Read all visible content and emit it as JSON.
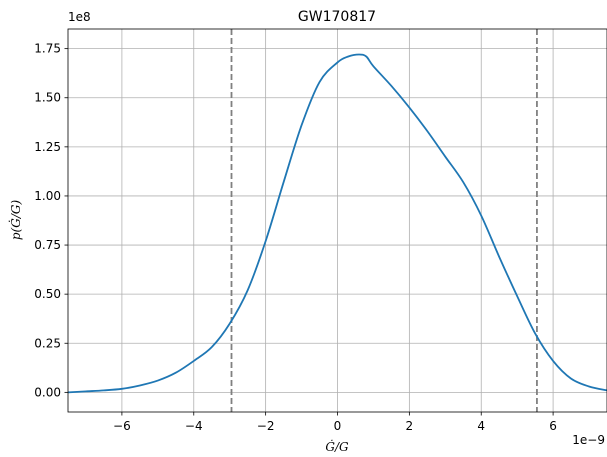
{
  "chart_data": {
    "type": "line",
    "title": "GW170817",
    "xlabel": "Ġ/G",
    "ylabel": "p(Ġ/G)",
    "x_offset_label": "1e−9",
    "y_offset_label": "1e8",
    "xlim": [
      -7.5,
      7.5
    ],
    "ylim": [
      -0.1,
      1.85
    ],
    "x_ticks": [
      -6,
      -4,
      -2,
      0,
      2,
      4,
      6
    ],
    "x_tick_labels": [
      "−6",
      "−4",
      "−2",
      "0",
      "2",
      "4",
      "6"
    ],
    "y_ticks": [
      0,
      0.25,
      0.5,
      0.75,
      1.0,
      1.25,
      1.5,
      1.75
    ],
    "y_tick_labels": [
      "0.00",
      "0.25",
      "0.50",
      "0.75",
      "1.00",
      "1.25",
      "1.50",
      "1.75"
    ],
    "grid": true,
    "series": [
      {
        "color": "#1f77b4",
        "x": [
          -7.5,
          -7.0,
          -6.5,
          -6.0,
          -5.5,
          -5.0,
          -4.5,
          -4.0,
          -3.5,
          -3.0,
          -2.5,
          -2.0,
          -1.5,
          -1.0,
          -0.5,
          0.0,
          0.3,
          0.6,
          0.8,
          1.0,
          1.5,
          2.0,
          2.5,
          3.0,
          3.5,
          4.0,
          4.5,
          5.0,
          5.5,
          6.0,
          6.5,
          7.0,
          7.5
        ],
        "y": [
          0.0,
          0.005,
          0.01,
          0.018,
          0.035,
          0.06,
          0.1,
          0.16,
          0.23,
          0.35,
          0.52,
          0.77,
          1.07,
          1.36,
          1.58,
          1.68,
          1.71,
          1.72,
          1.71,
          1.66,
          1.56,
          1.45,
          1.33,
          1.2,
          1.07,
          0.9,
          0.69,
          0.49,
          0.3,
          0.16,
          0.07,
          0.03,
          0.01
        ]
      }
    ],
    "vlines": [
      {
        "x": -2.95,
        "color": "#808080",
        "style": "dashed"
      },
      {
        "x": 5.55,
        "color": "#808080",
        "style": "dashed"
      }
    ]
  }
}
